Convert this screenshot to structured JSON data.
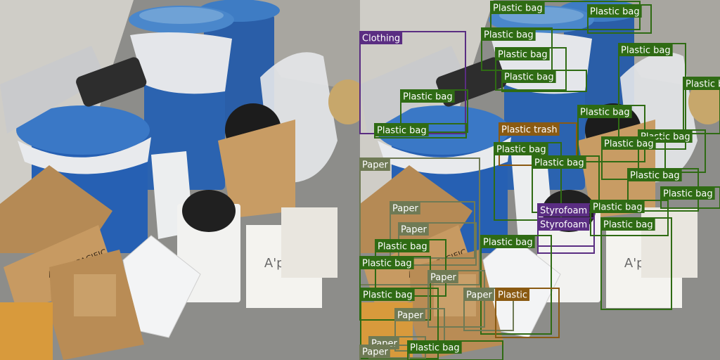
{
  "scene_texts": {
    "bag_brand": "A'pieu",
    "box_brand": "AMOREPACIFIC"
  },
  "detections": [
    {
      "label": "Plastic bag",
      "color": "#2f6b14"
    },
    {
      "label": "Plastic bag",
      "color": "#2f6b14"
    },
    {
      "label": "Clothing",
      "color": "#5a2d82"
    },
    {
      "label": "Plastic bag",
      "color": "#2f6b14"
    },
    {
      "label": "Plastic bag",
      "color": "#2f6b14"
    },
    {
      "label": "Plastic bag",
      "color": "#2f6b14"
    },
    {
      "label": "Plastic bag",
      "color": "#2f6b14"
    },
    {
      "label": "Plastic bag",
      "color": "#2f6b14"
    },
    {
      "label": "Plastic bag",
      "color": "#2f6b14"
    },
    {
      "label": "Plastic trash",
      "color": "#8a5a12"
    },
    {
      "label": "Plastic bag",
      "color": "#2f6b14"
    },
    {
      "label": "Plastic bag",
      "color": "#2f6b14"
    },
    {
      "label": "Plastic bag",
      "color": "#2f6b14"
    },
    {
      "label": "Plastic bag",
      "color": "#2f6b14"
    },
    {
      "label": "Paper",
      "color": "#6f7a55"
    },
    {
      "label": "Plastic bag",
      "color": "#2f6b14"
    },
    {
      "label": "Plastic bag",
      "color": "#2f6b14"
    },
    {
      "label": "Plastic bag",
      "color": "#2f6b14"
    },
    {
      "label": "Plastic bag",
      "color": "#2f6b14"
    },
    {
      "label": "Styrofoam",
      "color": "#5a2d82"
    },
    {
      "label": "Styrofoam",
      "color": "#5a2d82"
    },
    {
      "label": "Plastic bag",
      "color": "#2f6b14"
    },
    {
      "label": "Plastic bag",
      "color": "#2f6b14"
    },
    {
      "label": "Paper",
      "color": "#6f7a55"
    },
    {
      "label": "Paper",
      "color": "#6f7a55"
    },
    {
      "label": "Plastic bag",
      "color": "#2f6b14"
    },
    {
      "label": "Plastic bag",
      "color": "#2f6b14"
    },
    {
      "label": "Plastic bag",
      "color": "#2f6b14"
    },
    {
      "label": "Paper",
      "color": "#6f7a55"
    },
    {
      "label": "Paper",
      "color": "#6f7a55"
    },
    {
      "label": "Plastic",
      "color": "#8a5a12"
    },
    {
      "label": "Plastic bag",
      "color": "#2f6b14"
    },
    {
      "label": "Paper",
      "color": "#6f7a55"
    },
    {
      "label": "Paper",
      "color": "#6f7a55"
    },
    {
      "label": "Paper",
      "color": "#6f7a55"
    },
    {
      "label": "Plastic bag",
      "color": "#2f6b14"
    }
  ]
}
